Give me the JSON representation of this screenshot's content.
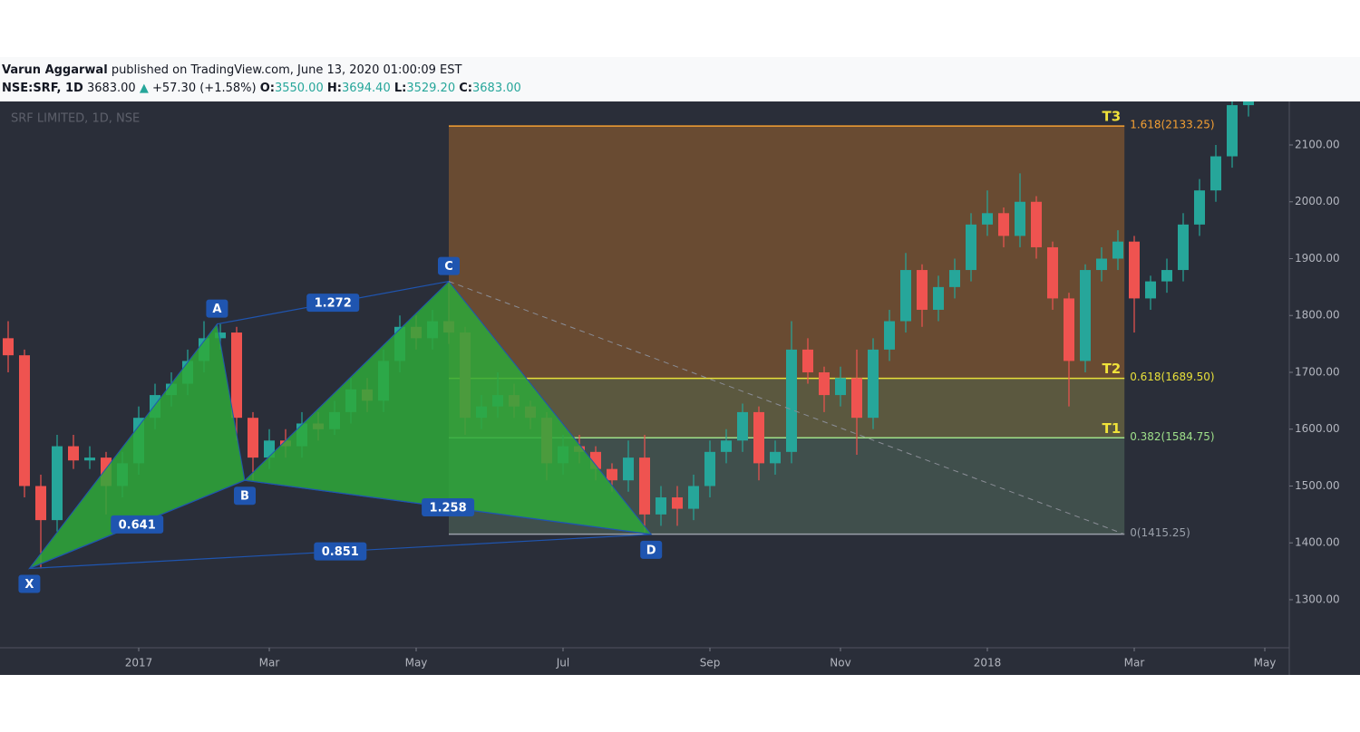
{
  "header": {
    "author": "Varun Aggarwal",
    "published": "published on TradingView.com, June 13, 2020 01:00:09 EST",
    "symbol": "NSE:SRF, 1D",
    "last": "3683.00",
    "change": "+57.30 (+1.58%)",
    "open_label": "O:",
    "open": "3550.00",
    "high_label": "H:",
    "high": "3694.40",
    "low_label": "L:",
    "low": "3529.20",
    "close_label": "C:",
    "close": "3683.00"
  },
  "chart_data": {
    "type": "candlestick",
    "watermark": "SRF LIMITED, 1D, NSE",
    "categories": [
      null,
      null,
      null,
      null,
      null,
      null,
      null,
      null,
      "2017",
      null,
      null,
      null,
      null,
      null,
      null,
      null,
      "Mar",
      null,
      null,
      null,
      null,
      null,
      null,
      null,
      null,
      "May",
      null,
      null,
      null,
      null,
      null,
      null,
      null,
      null,
      "Jul",
      null,
      null,
      null,
      null,
      null,
      null,
      null,
      null,
      "Sep",
      null,
      null,
      null,
      null,
      null,
      null,
      null,
      "Nov",
      null,
      null,
      null,
      null,
      null,
      null,
      null,
      null,
      "2018",
      null,
      null,
      null,
      null,
      null,
      null,
      null,
      null,
      "Mar",
      null,
      null,
      null,
      null,
      null,
      null,
      null,
      "May"
    ],
    "open": [
      1760,
      1730,
      1500,
      1440,
      1570,
      1545,
      1550,
      1500,
      1540,
      1620,
      1660,
      1680,
      1720,
      1760,
      1770,
      1620,
      1550,
      1580,
      1570,
      1610,
      1600,
      1630,
      1670,
      1650,
      1720,
      1780,
      1760,
      1790,
      1770,
      1620,
      1640,
      1660,
      1640,
      1620,
      1540,
      1570,
      1560,
      1530,
      1510,
      1550,
      1450,
      1480,
      1460,
      1500,
      1560,
      1580,
      1630,
      1540,
      1560,
      1740,
      1700,
      1660,
      1690,
      1620,
      1740,
      1790,
      1880,
      1810,
      1850,
      1880,
      1960,
      1980,
      1940,
      2000,
      1920,
      1830,
      1720,
      1880,
      1900,
      1930,
      1830,
      1860,
      1880,
      1960,
      2020,
      2080,
      2170,
      null
    ],
    "high": [
      1790,
      1740,
      1520,
      1590,
      1590,
      1570,
      1560,
      1560,
      1640,
      1680,
      1700,
      1740,
      1790,
      1785,
      1780,
      1630,
      1600,
      1600,
      1630,
      1630,
      1650,
      1690,
      1690,
      1740,
      1800,
      1800,
      1810,
      1860,
      1780,
      1660,
      1700,
      1680,
      1650,
      1630,
      1590,
      1590,
      1570,
      1540,
      1580,
      1590,
      1500,
      1500,
      1520,
      1580,
      1600,
      1645,
      1640,
      1580,
      1790,
      1760,
      1710,
      1710,
      1740,
      1760,
      1810,
      1910,
      1890,
      1870,
      1900,
      1980,
      2020,
      1990,
      2050,
      2010,
      1930,
      1840,
      1890,
      1920,
      1950,
      1940,
      1870,
      1900,
      1980,
      2040,
      2100,
      2200,
      2200,
      null
    ],
    "low": [
      1700,
      1480,
      1355,
      1420,
      1530,
      1530,
      1450,
      1480,
      1520,
      1600,
      1640,
      1660,
      1700,
      1740,
      1580,
      1510,
      1530,
      1550,
      1550,
      1580,
      1590,
      1610,
      1630,
      1630,
      1700,
      1740,
      1740,
      1750,
      1590,
      1600,
      1620,
      1620,
      1600,
      1510,
      1520,
      1540,
      1510,
      1490,
      1490,
      1415,
      1430,
      1430,
      1440,
      1480,
      1540,
      1560,
      1510,
      1520,
      1540,
      1680,
      1630,
      1640,
      1555,
      1600,
      1720,
      1770,
      1780,
      1790,
      1830,
      1860,
      1940,
      1920,
      1920,
      1900,
      1810,
      1640,
      1700,
      1860,
      1880,
      1770,
      1810,
      1840,
      1860,
      1940,
      2000,
      2060,
      2150,
      null
    ],
    "close": [
      1730,
      1500,
      1440,
      1570,
      1545,
      1550,
      1500,
      1540,
      1620,
      1660,
      1680,
      1720,
      1760,
      1770,
      1620,
      1550,
      1580,
      1570,
      1610,
      1600,
      1630,
      1670,
      1650,
      1720,
      1780,
      1760,
      1790,
      1770,
      1620,
      1640,
      1660,
      1640,
      1620,
      1540,
      1570,
      1560,
      1530,
      1510,
      1550,
      1450,
      1480,
      1460,
      1500,
      1560,
      1580,
      1630,
      1540,
      1560,
      1740,
      1700,
      1660,
      1690,
      1620,
      1740,
      1790,
      1880,
      1810,
      1850,
      1880,
      1960,
      1980,
      1940,
      2000,
      1920,
      1830,
      1720,
      1880,
      1900,
      1930,
      1830,
      1860,
      1880,
      1960,
      2020,
      2080,
      2170,
      2180,
      null
    ],
    "up_color": "#26a69a",
    "down_color": "#ef5350",
    "ylim": [
      1215.5,
      2176.5
    ],
    "yticks": [
      {
        "value": 1300,
        "label": "1300.00"
      },
      {
        "value": 1400,
        "label": "1400.00"
      },
      {
        "value": 1500,
        "label": "1500.00"
      },
      {
        "value": 1600,
        "label": "1600.00"
      },
      {
        "value": 1700,
        "label": "1700.00"
      },
      {
        "value": 1800,
        "label": "1800.00"
      },
      {
        "value": 1900,
        "label": "1900.00"
      },
      {
        "value": 2000,
        "label": "2000.00"
      },
      {
        "value": 2100,
        "label": "2100.00"
      }
    ],
    "pattern": {
      "fill": "#2ea83a",
      "line_color": "#1f55b0",
      "points": [
        {
          "label": "X",
          "index": 1.3,
          "price": 1355,
          "position": "below"
        },
        {
          "label": "A",
          "index": 12.8,
          "price": 1785,
          "position": "above"
        },
        {
          "label": "B",
          "index": 14.5,
          "price": 1510,
          "position": "below"
        },
        {
          "label": "C",
          "index": 27,
          "price": 1860,
          "position": "above"
        },
        {
          "label": "D",
          "index": 39.4,
          "price": 1415,
          "position": "below"
        }
      ],
      "ratios": [
        {
          "value": 0.641,
          "legs": [
            "X",
            "B"
          ]
        },
        {
          "value": 1.272,
          "legs": [
            "A",
            "C"
          ]
        },
        {
          "value": 1.258,
          "legs": [
            "B",
            "D"
          ]
        },
        {
          "value": 0.851,
          "legs": [
            "X",
            "D"
          ]
        }
      ]
    },
    "fib": {
      "x_start": 27,
      "x_end": 68.4,
      "levels": [
        {
          "price": 2133.25,
          "label": "1.618(2133.25)",
          "target": "T3",
          "color": "#f5a033",
          "fill": "rgba(168,104,44,0.5)"
        },
        {
          "price": 1689.5,
          "label": "0.618(1689.50)",
          "target": "T2",
          "color": "#e8e03a",
          "fill": "rgba(150,140,70,0.45)"
        },
        {
          "price": 1584.75,
          "label": "0.382(1584.75)",
          "target": "T1",
          "color": "#9fe08a",
          "fill": "rgba(90,120,100,0.45)"
        },
        {
          "price": 1415.25,
          "label": "0(1415.25)",
          "color": "#9aa0aa"
        }
      ]
    }
  }
}
